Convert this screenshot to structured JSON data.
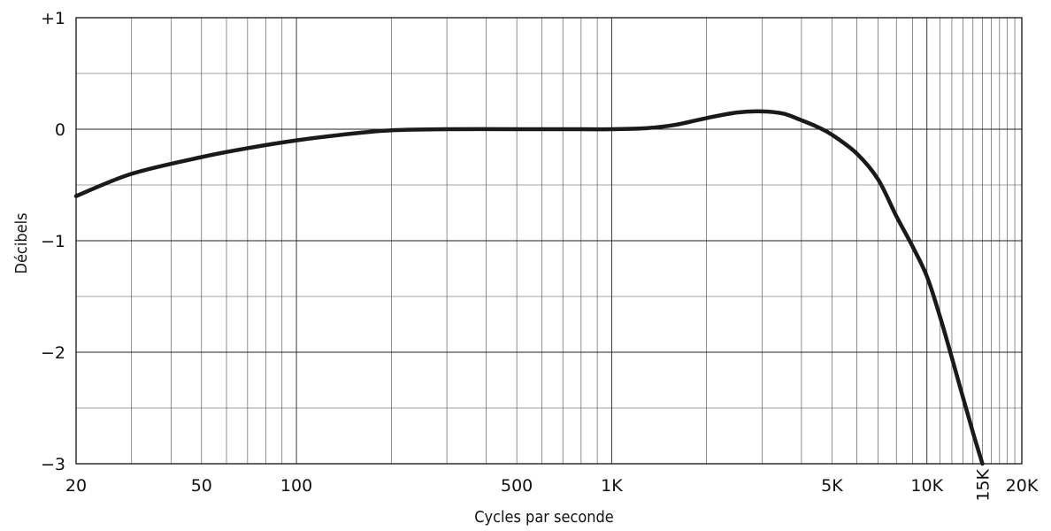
{
  "chart_data": {
    "type": "line",
    "title": "",
    "xlabel": "Cycles par seconde",
    "ylabel": "Décibels",
    "x_scale": "log",
    "xlim": [
      20,
      20000
    ],
    "ylim": [
      -3,
      1
    ],
    "grid": true,
    "x_ticks": [
      {
        "value": 20,
        "label": "20"
      },
      {
        "value": 50,
        "label": "50"
      },
      {
        "value": 100,
        "label": "100"
      },
      {
        "value": 500,
        "label": "500"
      },
      {
        "value": 1000,
        "label": "1K"
      },
      {
        "value": 5000,
        "label": "5K"
      },
      {
        "value": 10000,
        "label": "10K"
      },
      {
        "value": 15000,
        "label": "15K",
        "rotated": true
      },
      {
        "value": 20000,
        "label": "20K"
      }
    ],
    "y_ticks": [
      {
        "value": 1,
        "label": "+1"
      },
      {
        "value": 0,
        "label": "0"
      },
      {
        "value": -1,
        "label": "−1"
      },
      {
        "value": -2,
        "label": "−2"
      },
      {
        "value": -3,
        "label": "−3"
      }
    ],
    "series": [
      {
        "x": [
          20,
          30,
          50,
          70,
          100,
          150,
          200,
          300,
          500,
          700,
          1000,
          1300,
          1600,
          2000,
          2500,
          3000,
          3500,
          4000,
          4500,
          5000,
          6000,
          7000,
          8000,
          9000,
          10000,
          11000,
          12000,
          13000,
          14000,
          15000
        ],
        "y": [
          -0.6,
          -0.4,
          -0.25,
          -0.17,
          -0.1,
          -0.04,
          -0.01,
          0,
          0,
          0,
          0,
          0.01,
          0.04,
          0.1,
          0.15,
          0.16,
          0.14,
          0.08,
          0.02,
          -0.05,
          -0.22,
          -0.45,
          -0.78,
          -1.05,
          -1.32,
          -1.68,
          -2.05,
          -2.4,
          -2.72,
          -3.0
        ]
      }
    ]
  }
}
